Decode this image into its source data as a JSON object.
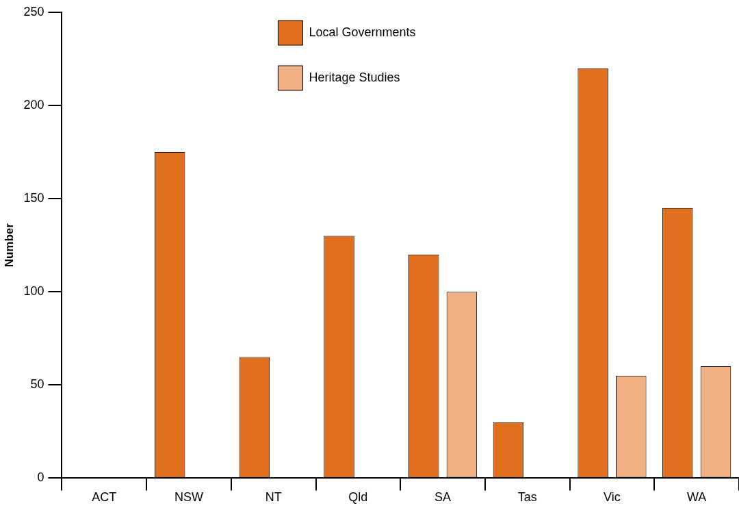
{
  "chart_data": {
    "type": "bar",
    "ylabel": "Number",
    "categories": [
      "ACT",
      "NSW",
      "NT",
      "Qld",
      "SA",
      "Tas",
      "Vic",
      "WA"
    ],
    "series": [
      {
        "name": "Local Governments",
        "color": "#e0701e",
        "values": [
          0,
          175,
          65,
          130,
          120,
          30,
          220,
          145
        ]
      },
      {
        "name": "Heritage Studies",
        "color": "#f0b083",
        "values": [
          0,
          0,
          0,
          0,
          100,
          0,
          55,
          60
        ]
      }
    ],
    "ylim": [
      0,
      250
    ],
    "yticks": [
      0,
      50,
      100,
      150,
      200,
      250
    ],
    "grid": false,
    "legend": "top"
  }
}
